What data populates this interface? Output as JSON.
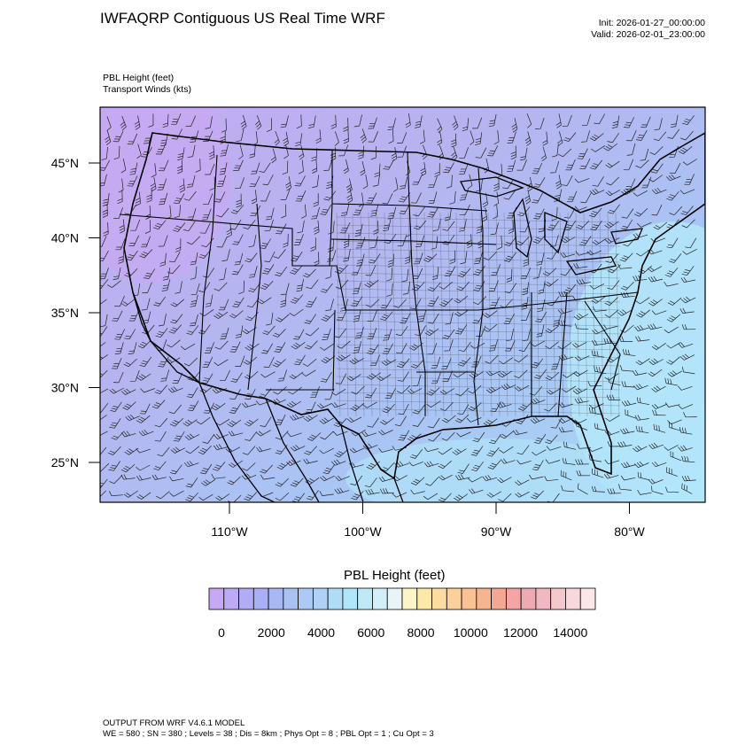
{
  "header": {
    "title": "IWFAQRP Contiguous US Real Time WRF",
    "init": "Init: 2026-01-27_00:00:00",
    "valid": "Valid: 2026-02-01_23:00:00"
  },
  "fields": {
    "line1": "PBL Height   (feet)",
    "line2": "Transport Winds   (kts)"
  },
  "map": {
    "lat_labels": [
      "45°N",
      "40°N",
      "35°N",
      "30°N",
      "25°N"
    ],
    "lat_values": [
      45,
      40,
      35,
      30,
      25
    ],
    "lon_labels": [
      "110°W",
      "100°W",
      "90°W",
      "80°W"
    ],
    "lon_values": [
      -110,
      -100,
      -90,
      -80
    ]
  },
  "colorbar": {
    "title": "PBL Height  (feet)",
    "tick_labels": [
      "0",
      "2000",
      "4000",
      "6000",
      "8000",
      "10000",
      "12000",
      "14000"
    ],
    "tick_values": [
      0,
      2000,
      4000,
      6000,
      8000,
      10000,
      12000,
      14000
    ],
    "range": [
      0,
      15500
    ],
    "colors": [
      "#c8a8f4",
      "#bcaaf4",
      "#b2acf6",
      "#a9b0f6",
      "#a8b8f2",
      "#aac1f3",
      "#accaf5",
      "#add2f6",
      "#b0dcf8",
      "#b0e6f9",
      "#c0e9f8",
      "#d4eef8",
      "#e8f4f8",
      "#fef5c6",
      "#fde8a8",
      "#fcdca0",
      "#fbd09a",
      "#f8c294",
      "#f6b590",
      "#f4a894",
      "#f4a4a4",
      "#eeaab0",
      "#f0b8c0",
      "#f4c8cc",
      "#f8d8dc",
      "#fbe6e8"
    ]
  },
  "footer": {
    "line1": "OUTPUT FROM WRF V4.6.1 MODEL",
    "line2": "WE = 580 ; SN = 380 ; Levels = 38 ; Dis = 8km ; Phys Opt = 8 ; PBL Opt = 1 ; Cu Opt = 3"
  }
}
